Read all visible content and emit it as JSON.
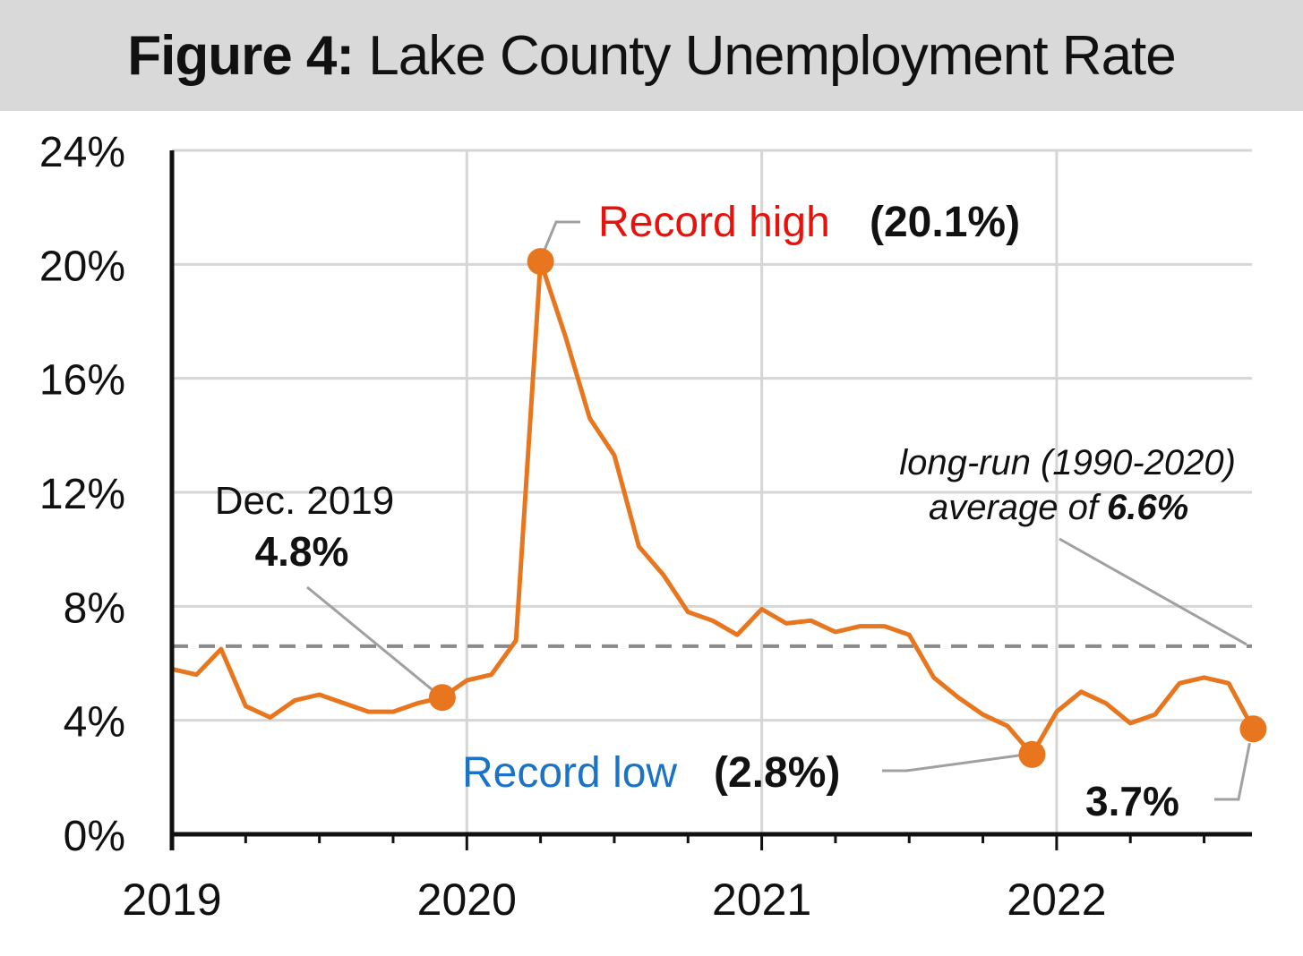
{
  "title": {
    "bold": "Figure 4:",
    "rest": "Lake County Unemployment Rate"
  },
  "colors": {
    "line": "#e8761e",
    "high_label": "#e8120c",
    "low_label": "#1a73c4",
    "avg_line": "#8a8a8a",
    "grid": "#d6d6d6",
    "title_bg": "#d9d9d9"
  },
  "chart_data": {
    "type": "line",
    "title": "Figure 4: Lake County Unemployment Rate",
    "xlabel": "",
    "ylabel": "",
    "ylim": [
      0,
      24
    ],
    "yticks": [
      0,
      4,
      8,
      12,
      16,
      20,
      24
    ],
    "ytick_labels": [
      "0%",
      "4%",
      "8%",
      "12%",
      "16%",
      "20%",
      "24%"
    ],
    "xtick_labels": [
      "2019",
      "2020",
      "2021",
      "2022"
    ],
    "grid": true,
    "x": [
      "2019-01",
      "2019-02",
      "2019-03",
      "2019-04",
      "2019-05",
      "2019-06",
      "2019-07",
      "2019-08",
      "2019-09",
      "2019-10",
      "2019-11",
      "2019-12",
      "2020-01",
      "2020-02",
      "2020-03",
      "2020-04",
      "2020-05",
      "2020-06",
      "2020-07",
      "2020-08",
      "2020-09",
      "2020-10",
      "2020-11",
      "2020-12",
      "2021-01",
      "2021-02",
      "2021-03",
      "2021-04",
      "2021-05",
      "2021-06",
      "2021-07",
      "2021-08",
      "2021-09",
      "2021-10",
      "2021-11",
      "2021-12",
      "2022-01",
      "2022-02",
      "2022-03",
      "2022-04",
      "2022-05",
      "2022-06",
      "2022-07",
      "2022-08",
      "2022-09"
    ],
    "series": [
      {
        "values": [
          5.8,
          5.6,
          6.5,
          4.5,
          4.1,
          4.7,
          4.9,
          4.6,
          4.3,
          4.3,
          4.6,
          4.8,
          5.4,
          5.6,
          6.8,
          20.1,
          17.5,
          14.6,
          13.3,
          10.1,
          9.1,
          7.8,
          7.5,
          7.0,
          7.9,
          7.4,
          7.5,
          7.1,
          7.3,
          7.3,
          7.0,
          5.5,
          4.8,
          4.2,
          3.8,
          2.8,
          4.3,
          5.0,
          4.6,
          3.9,
          4.2,
          5.3,
          5.5,
          5.3,
          3.7
        ]
      }
    ],
    "highlights": [
      {
        "date": "2019-12",
        "value": 4.8
      },
      {
        "date": "2020-04",
        "value": 20.1
      },
      {
        "date": "2021-12",
        "value": 2.8
      },
      {
        "date": "2022-09",
        "value": 3.7
      }
    ],
    "reference_line": {
      "value": 6.6,
      "style": "dashed"
    },
    "annotations": {
      "dec2019_label": "Dec. 2019",
      "dec2019_value": "4.8%",
      "high_label": "Record high",
      "high_value": "(20.1%)",
      "low_label": "Record low",
      "low_value": "(2.8%)",
      "latest_value": "3.7%",
      "avg_line1": "long-run (1990-2020)",
      "avg_line2_prefix": "average of",
      "avg_line2_value": "6.6%"
    }
  }
}
